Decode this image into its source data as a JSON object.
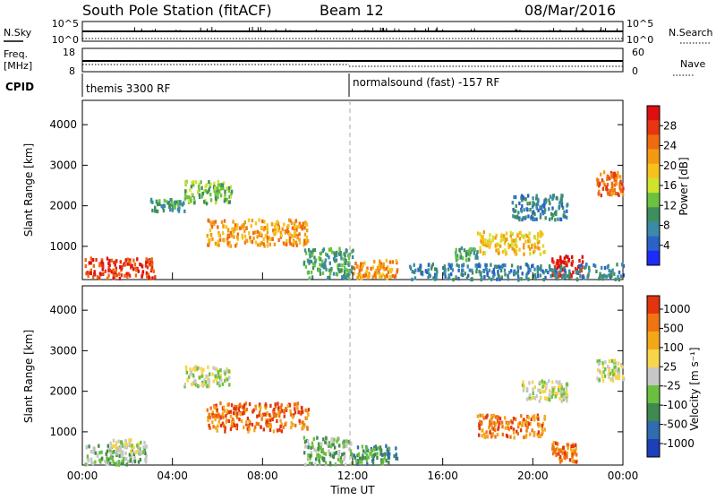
{
  "header": {
    "title": "South Pole Station (fitACF)",
    "beam": "Beam 12",
    "date": "08/Mar/2016"
  },
  "top_panels": {
    "nsky_label": "N.Sky",
    "nsearch_label": "N.Search",
    "freq_label_1": "Freq.",
    "freq_label_2": "[MHz]",
    "nave_label": "Nave",
    "cpid_label": "CPID",
    "noise_ticks": [
      "10^5",
      "10^0"
    ],
    "freq_ticks": [
      "18",
      "8"
    ],
    "nave_ticks": [
      "60",
      "0"
    ],
    "cpid_segments": [
      {
        "start_hour": 0,
        "label": "themis 3300 RF"
      },
      {
        "start_hour": 12,
        "label": "normalsound (fast) -157 RF"
      }
    ]
  },
  "chart_data": [
    {
      "type": "heatmap",
      "title": "",
      "xlabel": "",
      "ylabel": "Slant Range [km]",
      "xlim": [
        0,
        24
      ],
      "ylim": [
        180,
        4600
      ],
      "yticks": [
        "1000",
        "2000",
        "3000",
        "4000"
      ],
      "colorbar": {
        "label": "Power [dB]",
        "ticks": [
          "4",
          "8",
          "12",
          "16",
          "20",
          "24",
          "28"
        ],
        "colors": [
          "#1c2cff",
          "#2a62c8",
          "#3a8aa8",
          "#3f8f5d",
          "#6bc23f",
          "#cfe22e",
          "#f7c21d",
          "#f39a14",
          "#ef6a10",
          "#e63510",
          "#dd0f10"
        ]
      },
      "regions": [
        {
          "x": [
            0.1,
            3.2
          ],
          "y": [
            250,
            750
          ],
          "level": 9
        },
        {
          "x": [
            3.0,
            4.5
          ],
          "y": [
            1900,
            2200
          ],
          "level": 3
        },
        {
          "x": [
            4.5,
            6.6
          ],
          "y": [
            2100,
            2650
          ],
          "level": 4
        },
        {
          "x": [
            5.5,
            10.0
          ],
          "y": [
            1050,
            1700
          ],
          "level": 7
        },
        {
          "x": [
            9.8,
            12.0
          ],
          "y": [
            230,
            1000
          ],
          "level": 3
        },
        {
          "x": [
            12.0,
            14.0
          ],
          "y": [
            250,
            700
          ],
          "level": 7
        },
        {
          "x": [
            16.5,
            17.5
          ],
          "y": [
            700,
            1000
          ],
          "level": 3
        },
        {
          "x": [
            17.5,
            20.5
          ],
          "y": [
            850,
            1400
          ],
          "level": 6
        },
        {
          "x": [
            20.8,
            22.2
          ],
          "y": [
            300,
            800
          ],
          "level": 10
        },
        {
          "x": [
            22.8,
            24.0
          ],
          "y": [
            2300,
            2900
          ],
          "level": 8
        },
        {
          "x": [
            19.0,
            21.5
          ],
          "y": [
            1700,
            2300
          ],
          "level": 2
        },
        {
          "x": [
            14.5,
            24.0
          ],
          "y": [
            220,
            600
          ],
          "level": 2
        }
      ]
    },
    {
      "type": "heatmap",
      "title": "",
      "xlabel": "Time UT",
      "ylabel": "Slant Range [km]",
      "xlim": [
        0,
        24
      ],
      "ylim": [
        180,
        4600
      ],
      "xticks": [
        "00:00",
        "04:00",
        "08:00",
        "12:00",
        "16:00",
        "20:00",
        "00:00"
      ],
      "yticks": [
        "1000",
        "2000",
        "3000",
        "4000"
      ],
      "colorbar": {
        "label": "Velocity [m s⁻¹]",
        "ticks": [
          "1000",
          "500",
          "100",
          "25",
          "-25",
          "-100",
          "-500",
          "-1000"
        ],
        "colors": [
          "#1d3fb8",
          "#2f6cb0",
          "#3f8a4f",
          "#6cc040",
          "#c7c7c7",
          "#f8d54a",
          "#f3a81a",
          "#f07412",
          "#e2340e"
        ]
      },
      "regions": [
        {
          "x": [
            0.1,
            2.8
          ],
          "y": [
            230,
            700
          ],
          "level": 3
        },
        {
          "x": [
            1.2,
            2.8
          ],
          "y": [
            500,
            850
          ],
          "level": 4
        },
        {
          "x": [
            4.5,
            6.5
          ],
          "y": [
            2150,
            2650
          ],
          "level": 4
        },
        {
          "x": [
            5.5,
            10.0
          ],
          "y": [
            1050,
            1750
          ],
          "level": 7
        },
        {
          "x": [
            9.8,
            12.0
          ],
          "y": [
            230,
            900
          ],
          "level": 3
        },
        {
          "x": [
            12.0,
            14.0
          ],
          "y": [
            250,
            700
          ],
          "level": 2
        },
        {
          "x": [
            17.5,
            20.5
          ],
          "y": [
            900,
            1450
          ],
          "level": 7
        },
        {
          "x": [
            20.8,
            22.0
          ],
          "y": [
            300,
            800
          ],
          "level": 7
        },
        {
          "x": [
            22.8,
            24.0
          ],
          "y": [
            2300,
            2800
          ],
          "level": 4
        },
        {
          "x": [
            19.5,
            21.5
          ],
          "y": [
            1800,
            2300
          ],
          "level": 4
        }
      ]
    }
  ]
}
